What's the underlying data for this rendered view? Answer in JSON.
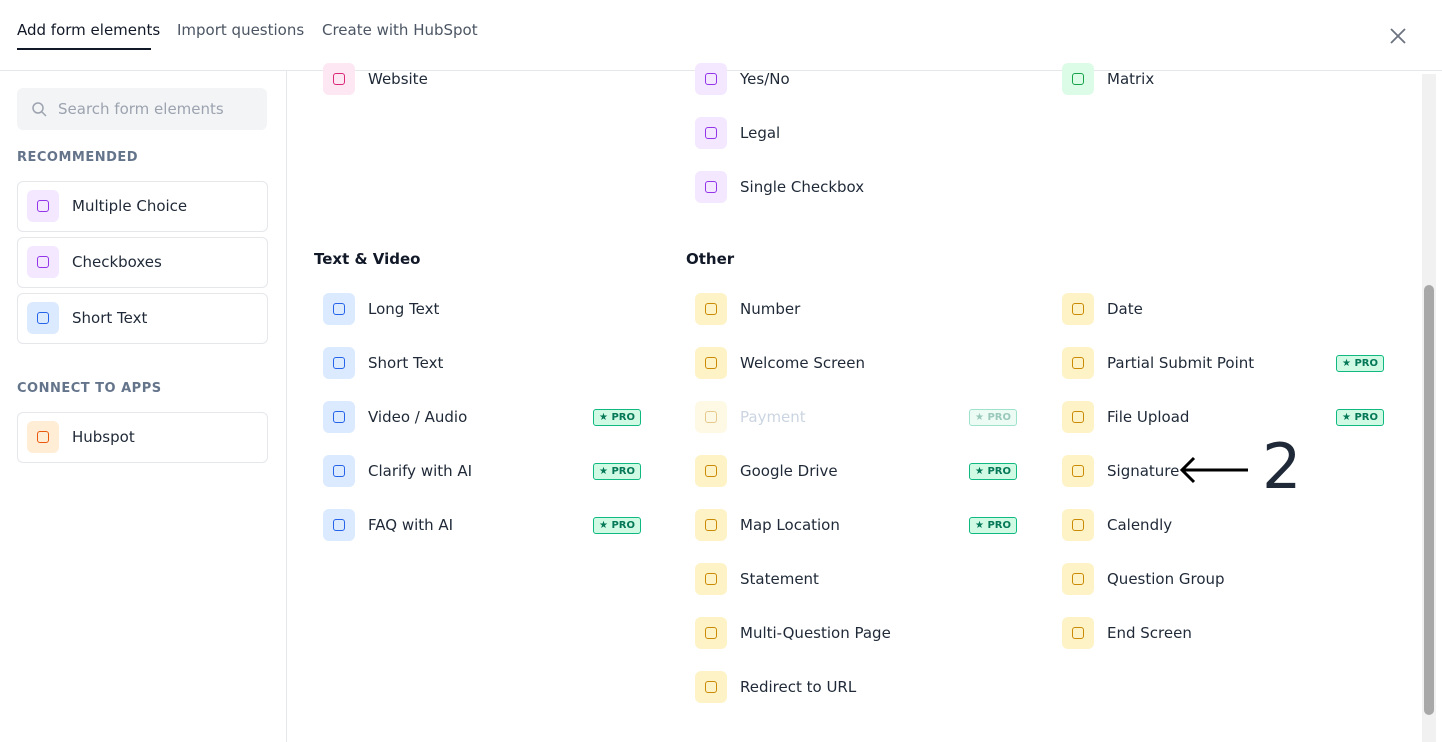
{
  "tabs": [
    "Add form elements",
    "Import questions",
    "Create with HubSpot"
  ],
  "sidebar": {
    "search_placeholder": "Search form elements",
    "recommended": {
      "heading": "RECOMMENDED",
      "items": [
        "Multiple Choice",
        "Checkboxes",
        "Short Text"
      ]
    },
    "apps": {
      "heading": "CONNECT TO APPS",
      "items": [
        "Hubspot"
      ]
    }
  },
  "main": {
    "top": [
      [
        {
          "label": "Website"
        }
      ],
      [
        {
          "label": "Yes/No"
        },
        {
          "label": "Legal"
        },
        {
          "label": "Single Checkbox"
        }
      ],
      [
        {
          "label": "Matrix"
        }
      ]
    ],
    "sections": [
      {
        "heading": "Text & Video",
        "columns": [
          [
            {
              "label": "Long Text"
            },
            {
              "label": "Short Text"
            },
            {
              "label": "Video / Audio",
              "badge": "★ PRO"
            },
            {
              "label": "Clarify with AI",
              "badge": "★ PRO"
            },
            {
              "label": "FAQ with AI",
              "badge": "★ PRO"
            }
          ]
        ]
      },
      {
        "heading": "Other",
        "columns": [
          [
            {
              "label": "Number"
            },
            {
              "label": "Welcome Screen"
            },
            {
              "label": "Payment",
              "badge": "★ PRO",
              "disabled": true
            },
            {
              "label": "Google Drive",
              "badge": "★ PRO"
            },
            {
              "label": "Map Location",
              "badge": "★ PRO"
            },
            {
              "label": "Statement"
            },
            {
              "label": "Multi-Question Page"
            },
            {
              "label": "Redirect to URL"
            }
          ],
          [
            {
              "label": "Date"
            },
            {
              "label": "Partial Submit Point",
              "badge": "★ PRO"
            },
            {
              "label": "File Upload",
              "badge": "★ PRO"
            },
            {
              "label": "Signature"
            },
            {
              "label": "Calendly"
            },
            {
              "label": "Question Group"
            },
            {
              "label": "End Screen"
            }
          ]
        ]
      }
    ]
  },
  "annotation": "2"
}
